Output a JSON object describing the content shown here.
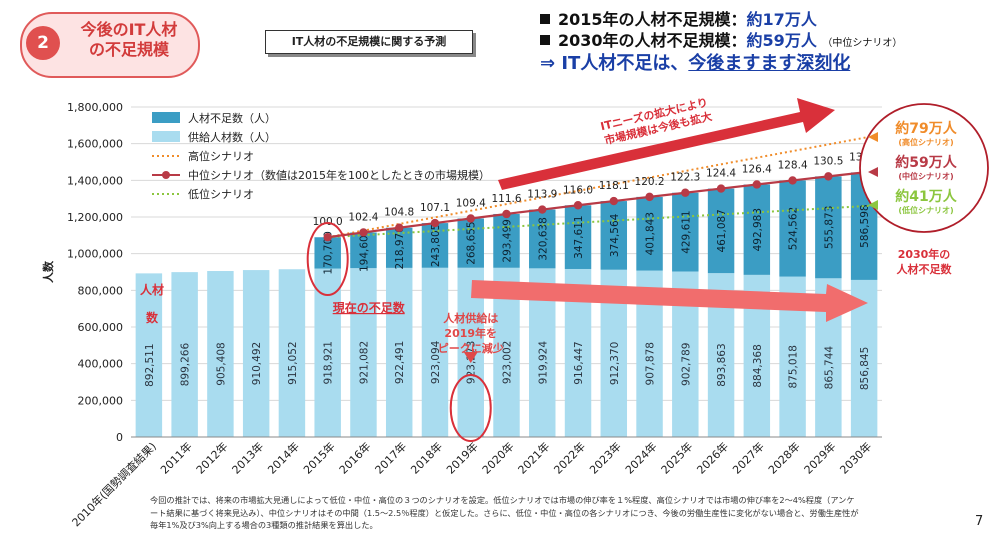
{
  "badge": {
    "number": "2",
    "title_line1": "今後のIT人材",
    "title_line2": "の不足規模"
  },
  "subtitle": "IT人材の不足規模に関する予測",
  "summary": {
    "line1_prefix": "2015年の人材不足規模：",
    "line1_value": "約17万人",
    "line2_prefix": "2030年の人材不足規模：",
    "line2_value": "約59万人",
    "line2_note": "（中位シナリオ）",
    "conclusion_prefix": "⇒ IT人材不足は、",
    "conclusion_emph": "今後ますます深刻化"
  },
  "chart_data": {
    "type": "bar",
    "stacked": true,
    "categories": [
      "2010年(国勢調査結果)",
      "2011年",
      "2012年",
      "2013年",
      "2014年",
      "2015年",
      "2016年",
      "2017年",
      "2018年",
      "2019年",
      "2020年",
      "2021年",
      "2022年",
      "2023年",
      "2024年",
      "2025年",
      "2026年",
      "2027年",
      "2028年",
      "2029年",
      "2030年"
    ],
    "series": [
      {
        "name": "供給人材数（人）",
        "color": "#a9dcef",
        "values": [
          892511,
          899266,
          905408,
          910492,
          915052,
          918921,
          921082,
          922491,
          923094,
          923273,
          923002,
          919924,
          916447,
          912370,
          907878,
          902789,
          893863,
          884368,
          875018,
          865744,
          856845
        ],
        "labels": [
          "892,511",
          "899,266",
          "905,408",
          "910,492",
          "915,052",
          "918,921",
          "921,082",
          "922,491",
          "923,094",
          "923,273",
          "923,002",
          "919,924",
          "916,447",
          "912,370",
          "907,878",
          "902,789",
          "893,863",
          "884,368",
          "875,018",
          "865,744",
          "856,845"
        ]
      },
      {
        "name": "人材不足数（人）",
        "color": "#3b9dc4",
        "values": [
          null,
          null,
          null,
          null,
          null,
          170700,
          194608,
          218976,
          243805,
          268655,
          293499,
          320638,
          347611,
          374564,
          401843,
          429611,
          461087,
          492983,
          524562,
          555873,
          586598
        ],
        "labels": [
          "",
          "",
          "",
          "",
          "",
          "170,700",
          "194,608",
          "218,976",
          "243,805",
          "268,655",
          "293,499",
          "320,638",
          "347,611",
          "374,564",
          "401,843",
          "429,611",
          "461,087",
          "492,983",
          "524,562",
          "555,873",
          "586,598"
        ]
      }
    ],
    "scenarios": [
      {
        "name": "高位シナリオ",
        "color": "#f08c2a",
        "style": "dotted",
        "start": 1089621,
        "end": 1650000
      },
      {
        "name": "中位シナリオ（数値は2015年を100としたときの市場規模）",
        "color": "#b83a46",
        "style": "solid",
        "index_labels": [
          "100.0",
          "102.4",
          "104.8",
          "107.1",
          "109.4",
          "111.6",
          "113.9",
          "116.0",
          "118.1",
          "120.2",
          "122.3",
          "124.4",
          "126.4",
          "128.4",
          "130.5",
          "132.5"
        ]
      },
      {
        "name": "低位シナリオ",
        "color": "#8cc63f",
        "style": "dotted",
        "start": 1089621,
        "end": 1265000
      }
    ],
    "legend": [
      "人材不足数（人）",
      "供給人材数（人）",
      "高位シナリオ",
      "中位シナリオ（数値は2015年を100としたときの市場規模）",
      "低位シナリオ"
    ],
    "legend_position": "top-left",
    "ylabel": "人数",
    "ylim": [
      0,
      1800000
    ],
    "yticks": [
      "0",
      "200,000",
      "400,000",
      "600,000",
      "800,000",
      "1,000,000",
      "1,200,000",
      "1,400,000",
      "1,600,000",
      "1,800,000"
    ],
    "grid": true
  },
  "annotations": {
    "bar_label": "人材数",
    "current_shortage": "現在の不足数",
    "peak_note": [
      "人材供給は",
      "2019年を",
      "ピークに減少"
    ],
    "market_note": [
      "ITニーズの拡大により",
      "市場規模は今後も拡大"
    ],
    "high": {
      "value": "約79万人",
      "note": "(高位シナリオ)"
    },
    "mid": {
      "value": "約59万人",
      "note": "(中位シナリオ)"
    },
    "low": {
      "value": "約41万人",
      "note": "(低位シナリオ)"
    },
    "shortage_2030": [
      "2030年の",
      "人材不足数"
    ]
  },
  "footnote": "今回の推計では、将来の市場拡大見通しによって低位・中位・高位の３つのシナリオを設定。低位シナリオでは市場の伸び率を１%程度、高位シナリオでは市場の伸び率を2～4%程度（アンケート結果に基づく将来見込み）、中位シナリオはその中間（1.5～2.5％程度）と仮定した。さらに、低位・中位・高位の各シナリオにつき、今後の労働生産性に変化がない場合と、労働生産性が毎年1%及び3%向上する場合の3種類の推計結果を算出した。",
  "page_number": "7"
}
